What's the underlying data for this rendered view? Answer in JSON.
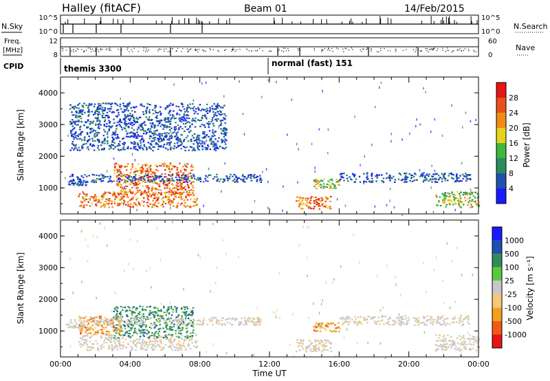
{
  "header": {
    "station": "Halley (fitACF)",
    "beam": "Beam 01",
    "date": "14/Feb/2015"
  },
  "side_labels": {
    "nsky": "N.Sky",
    "nsearch": "N.Search",
    "freq_l1": "Freq.",
    "freq_l2": "[MHz]",
    "nave": "Nave",
    "cpid": "CPID"
  },
  "top_axes": {
    "nsky_ticks": [
      "10^5",
      "10^0"
    ],
    "nsearch_ticks": [
      "10^5",
      "10^0"
    ],
    "freq_ticks": [
      "12",
      "8"
    ],
    "nave_ticks": [
      "60",
      "0"
    ]
  },
  "cpid_segments": [
    {
      "label": "themis 3300",
      "start": "00:00"
    },
    {
      "label": "normal (fast) 151",
      "start": "12:00"
    }
  ],
  "colors": {
    "power": [
      "#1a1aff",
      "#1f4fb0",
      "#2a8c5a",
      "#3cb83c",
      "#e6d21e",
      "#f08c14",
      "#e8501e",
      "#e61414"
    ],
    "velocity": [
      "#e61414",
      "#f05a14",
      "#f0a01e",
      "#f5c878",
      "#c8c8c8",
      "#5ac83c",
      "#2f8c5a",
      "#1f4fb0",
      "#1a1aff"
    ]
  },
  "chart_data": [
    {
      "type": "heatmap",
      "title": "",
      "ylabel": "Slant Range [km]",
      "xlabel": "",
      "xlim": [
        "00:00",
        "24:00"
      ],
      "ylim": [
        180,
        4500
      ],
      "yticks": [
        "1000",
        "2000",
        "3000",
        "4000"
      ],
      "colorbar_label": "Power [dB]",
      "colorbar_ticks": [
        "4",
        "8",
        "12",
        "16",
        "20",
        "24",
        "28"
      ],
      "colorbar_range": [
        0,
        30
      ],
      "features": [
        {
          "t": [
            0.3,
            1.5
          ],
          "r": [
            1100,
            1250
          ],
          "level": "low"
        },
        {
          "t": [
            1.0,
            7.8
          ],
          "r": [
            400,
            900
          ],
          "level": "high"
        },
        {
          "t": [
            3.0,
            7.6
          ],
          "r": [
            800,
            1800
          ],
          "level": "high"
        },
        {
          "t": [
            0.5,
            11.5
          ],
          "r": [
            1200,
            1450
          ],
          "level": "low"
        },
        {
          "t": [
            0.5,
            9.5
          ],
          "r": [
            2200,
            3700
          ],
          "level": "low"
        },
        {
          "t": [
            13.5,
            15.5
          ],
          "r": [
            350,
            750
          ],
          "level": "high"
        },
        {
          "t": [
            14.5,
            16.0
          ],
          "r": [
            1000,
            1300
          ],
          "level": "mid"
        },
        {
          "t": [
            16.0,
            23.5
          ],
          "r": [
            1200,
            1500
          ],
          "level": "low"
        },
        {
          "t": [
            21.5,
            24.0
          ],
          "r": [
            400,
            900
          ],
          "level": "mid"
        }
      ]
    },
    {
      "type": "heatmap",
      "title": "",
      "ylabel": "Slant Range [km]",
      "xlabel": "Time UT",
      "xlim": [
        "00:00",
        "24:00"
      ],
      "ylim": [
        180,
        4500
      ],
      "xticks": [
        "00:00",
        "04:00",
        "08:00",
        "12:00",
        "16:00",
        "20:00",
        "00:00"
      ],
      "yticks": [
        "1000",
        "2000",
        "3000",
        "4000"
      ],
      "colorbar_label": "Velocity [m s⁻¹]",
      "colorbar_ticks": [
        "1000",
        "500",
        "100",
        "25",
        "-25",
        "-100",
        "-500",
        "-1000"
      ],
      "features": [
        {
          "t": [
            0.3,
            1.5
          ],
          "r": [
            1100,
            1250
          ],
          "velocity": "-25..25"
        },
        {
          "t": [
            1.0,
            7.8
          ],
          "r": [
            400,
            900
          ],
          "velocity": "-25..25"
        },
        {
          "t": [
            3.0,
            7.6
          ],
          "r": [
            800,
            1800
          ],
          "velocity": "100..500"
        },
        {
          "t": [
            1.0,
            3.5
          ],
          "r": [
            900,
            1500
          ],
          "velocity": "-100..-500"
        },
        {
          "t": [
            0.5,
            11.5
          ],
          "r": [
            1200,
            1450
          ],
          "velocity": "-25..25"
        },
        {
          "t": [
            13.5,
            15.5
          ],
          "r": [
            350,
            750
          ],
          "velocity": "-25..25"
        },
        {
          "t": [
            14.5,
            16.0
          ],
          "r": [
            1000,
            1300
          ],
          "velocity": "-100..-500"
        },
        {
          "t": [
            16.0,
            23.5
          ],
          "r": [
            1200,
            1500
          ],
          "velocity": "-25..25"
        },
        {
          "t": [
            21.5,
            24.0
          ],
          "r": [
            400,
            900
          ],
          "velocity": "-25..25"
        }
      ]
    }
  ]
}
